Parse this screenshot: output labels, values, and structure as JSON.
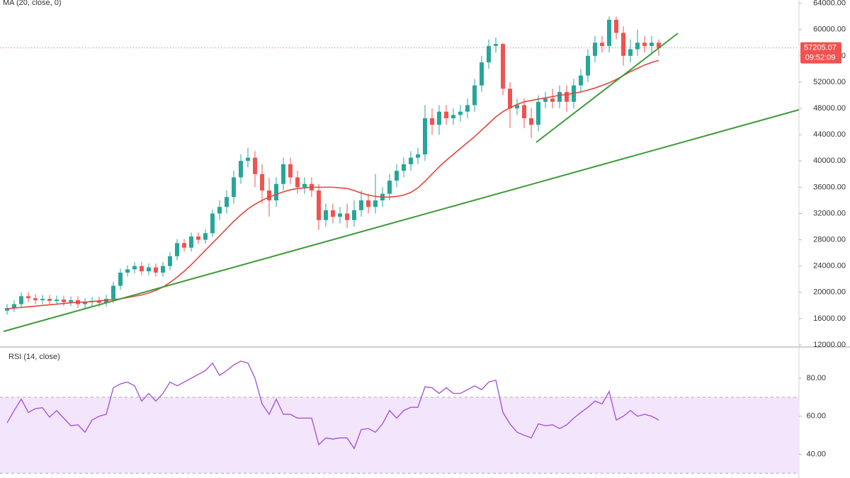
{
  "chart_data": [
    {
      "type": "candlestick",
      "open": [
        17200,
        17600,
        18200,
        19400,
        19100,
        18800,
        19000,
        18700,
        18900,
        18500,
        18800,
        18200,
        18500,
        18700,
        18400,
        19000,
        21000,
        23000,
        23500,
        24000,
        23200,
        23800,
        23000,
        24000,
        25500,
        27500,
        26800,
        28500,
        28000,
        29000,
        32000,
        33000,
        34500,
        37500,
        40000,
        40500,
        38000,
        35500,
        34000,
        36500,
        39500,
        37500,
        36000,
        36500,
        35500,
        31000,
        32500,
        31500,
        32000,
        31000,
        32500,
        34000,
        33000,
        34000,
        35000,
        37000,
        38500,
        39500,
        40500,
        41000,
        46500,
        45500,
        47500,
        46500,
        47000,
        47500,
        48500,
        51500,
        55000,
        57500,
        57800,
        51000,
        48000,
        48500,
        46500,
        45500,
        49000,
        49500,
        49000,
        50500,
        49000,
        51500,
        53000,
        56000,
        58000,
        57500,
        61500,
        59500,
        56000,
        57000,
        58000,
        57500,
        58000
      ],
      "high": [
        18200,
        18800,
        20000,
        20000,
        19700,
        19600,
        19600,
        19500,
        19500,
        19400,
        19400,
        19100,
        19300,
        19300,
        19600,
        21600,
        23600,
        24100,
        24600,
        24600,
        24400,
        24400,
        24600,
        26100,
        28100,
        28100,
        29100,
        29100,
        29600,
        32600,
        34000,
        35500,
        38500,
        41000,
        42000,
        41500,
        39500,
        37500,
        37500,
        40500,
        40500,
        38500,
        37500,
        37500,
        36500,
        33500,
        33500,
        33000,
        33500,
        34000,
        35500,
        35000,
        38000,
        36000,
        38000,
        39500,
        40500,
        41500,
        42000,
        48500,
        48000,
        48500,
        48500,
        48000,
        48500,
        49500,
        52500,
        56000,
        58500,
        58800,
        58000,
        52000,
        49500,
        49500,
        48000,
        50000,
        50500,
        51000,
        51500,
        51500,
        52500,
        54000,
        57000,
        59000,
        59000,
        62000,
        62000,
        60500,
        58500,
        60000,
        59000,
        59000,
        58500
      ],
      "low": [
        16600,
        17000,
        17600,
        18500,
        18200,
        18200,
        18100,
        18100,
        17900,
        17900,
        17600,
        17600,
        17900,
        17800,
        17800,
        18400,
        20400,
        22400,
        22900,
        22600,
        22600,
        22400,
        22400,
        23400,
        24900,
        26200,
        26200,
        27400,
        27400,
        28400,
        31000,
        32000,
        33500,
        36500,
        39000,
        36000,
        33500,
        31500,
        33000,
        35500,
        36500,
        35000,
        35000,
        34500,
        29500,
        30000,
        30500,
        30500,
        29800,
        30000,
        31500,
        32000,
        32000,
        33000,
        34000,
        36000,
        37500,
        38500,
        39500,
        40000,
        44000,
        44000,
        45500,
        45500,
        46000,
        46500,
        47500,
        50500,
        54000,
        56500,
        50000,
        45000,
        47000,
        45000,
        43500,
        44500,
        48000,
        48000,
        48000,
        47500,
        48000,
        50500,
        52000,
        55000,
        56500,
        56500,
        58500,
        54500,
        55000,
        56000,
        56500,
        56500,
        56000
      ],
      "close": [
        17600,
        18200,
        19400,
        19100,
        18800,
        19000,
        18700,
        18900,
        18500,
        18800,
        18200,
        18500,
        18700,
        18400,
        19000,
        21000,
        23000,
        23500,
        24000,
        23200,
        23800,
        23000,
        24000,
        25500,
        27500,
        26800,
        28500,
        28000,
        29000,
        32000,
        33000,
        34500,
        37500,
        40000,
        40500,
        38000,
        35500,
        34000,
        36500,
        39500,
        37500,
        36000,
        36500,
        35500,
        31000,
        32500,
        31500,
        32000,
        31000,
        32500,
        34000,
        33000,
        34000,
        35000,
        37000,
        38500,
        39500,
        40500,
        41000,
        46500,
        45500,
        47500,
        46500,
        47000,
        47500,
        48500,
        51500,
        55000,
        57500,
        57800,
        51000,
        48000,
        48500,
        46500,
        45500,
        49000,
        49500,
        49000,
        50500,
        49000,
        51500,
        53000,
        56000,
        58000,
        57500,
        61500,
        59500,
        56000,
        57000,
        58000,
        57500,
        58000,
        57205.07
      ],
      "up_color": "#26a69a",
      "down_color": "#ef5350",
      "series": [
        {
          "name": "MA (20, close, 0)",
          "color": "#e2453c",
          "values": [
            17500,
            17600,
            17700,
            17800,
            17900,
            18000,
            18100,
            18200,
            18300,
            18400,
            18500,
            18500,
            18600,
            18700,
            18800,
            18900,
            19000,
            19200,
            19400,
            19600,
            19900,
            20300,
            20800,
            21500,
            22300,
            23200,
            24200,
            25300,
            26400,
            27500,
            28600,
            29700,
            30800,
            31800,
            32700,
            33400,
            34000,
            34500,
            34900,
            35300,
            35600,
            35800,
            35900,
            36000,
            36000,
            36000,
            36000,
            35900,
            35800,
            35500,
            35100,
            34800,
            34600,
            34500,
            34500,
            34600,
            34800,
            35200,
            35900,
            36900,
            38000,
            39100,
            40100,
            41000,
            41900,
            42800,
            43700,
            44700,
            45700,
            46700,
            47500,
            48100,
            48600,
            49000,
            49200,
            49400,
            49600,
            49800,
            50000,
            50100,
            50300,
            50500,
            50800,
            51100,
            51500,
            51900,
            52400,
            53000,
            53600,
            54100,
            54600,
            55000,
            55300
          ]
        }
      ],
      "ylim": [
        12000,
        64500
      ],
      "yticks": [
        {
          "value": 12000,
          "label": "12000.00"
        },
        {
          "value": 16000,
          "label": "16000.00"
        },
        {
          "value": 20000,
          "label": "20000.00"
        },
        {
          "value": 24000,
          "label": "24000.00"
        },
        {
          "value": 28000,
          "label": "28000.00"
        },
        {
          "value": 32000,
          "label": "32000.00"
        },
        {
          "value": 36000,
          "label": "36000.00"
        },
        {
          "value": 40000,
          "label": "40000.00"
        },
        {
          "value": 44000,
          "label": "44000.00"
        },
        {
          "value": 48000,
          "label": "48000.00"
        },
        {
          "value": 52000,
          "label": "52000.00"
        },
        {
          "value": 56000,
          "label": "56000.00"
        },
        {
          "value": 60000,
          "label": "60000.00"
        },
        {
          "value": 64000,
          "label": "64000.00"
        }
      ],
      "last_price": 57205.07,
      "countdown": "09:52:09"
    },
    {
      "type": "line",
      "series": [
        {
          "name": "RSI (14, close)",
          "color": "#a557d6",
          "values": [
            56.5,
            63,
            69,
            62,
            64,
            64.5,
            59.5,
            63,
            59,
            55,
            55.5,
            51.6,
            58,
            60,
            61,
            75,
            77,
            78,
            76,
            68,
            72,
            68,
            72,
            78,
            76,
            78,
            80,
            82,
            84,
            88,
            81.5,
            84,
            87,
            89,
            88,
            80,
            66.5,
            61,
            69,
            61,
            61,
            59,
            59,
            59,
            45,
            48.6,
            48,
            48.6,
            48.6,
            43,
            53,
            53.5,
            51.6,
            56,
            63,
            59,
            63,
            64.7,
            64.7,
            75.5,
            75,
            72,
            75,
            72,
            72,
            74,
            76,
            74,
            78,
            79,
            62,
            56,
            51.6,
            50,
            48.6,
            56,
            55,
            55.5,
            53.5,
            55.5,
            59,
            62,
            64.7,
            68,
            66.5,
            73,
            58,
            60,
            63,
            60,
            61,
            60,
            58
          ]
        }
      ],
      "ylim": [
        27.5,
        95.7
      ],
      "yticks": [
        {
          "value": 40,
          "label": "40.00"
        },
        {
          "value": 60,
          "label": "60.00"
        },
        {
          "value": 80,
          "label": "80.00"
        }
      ],
      "band": [
        30,
        70
      ],
      "band_color": "#f3e5fc"
    }
  ]
}
